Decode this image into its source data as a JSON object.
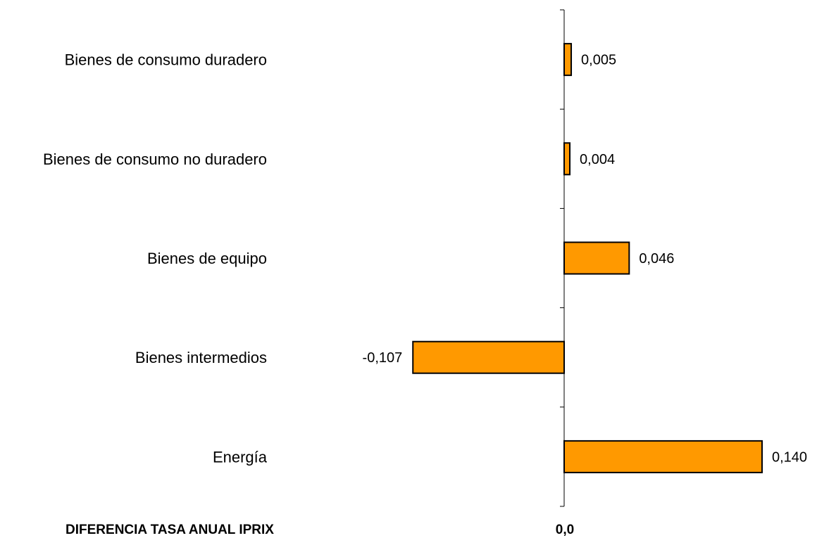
{
  "chart_data": {
    "type": "bar",
    "orientation": "horizontal",
    "categories": [
      "Bienes de consumo duradero",
      "Bienes de consumo no duradero",
      "Bienes de equipo",
      "Bienes intermedios",
      "Energía"
    ],
    "values": [
      0.005,
      0.004,
      0.046,
      -0.107,
      0.14
    ],
    "value_labels": [
      "0,005",
      "0,004",
      "0,046",
      "-0,107",
      "0,140"
    ],
    "title": "DIFERENCIA TASA ANUAL IPRIX",
    "axis_label": "0,0",
    "xlim": [
      -0.107,
      0.14
    ],
    "grid": false,
    "legend": "none",
    "colors": {
      "bar_fill": "#FF9900",
      "bar_stroke": "#000000",
      "axis": "#000000"
    }
  }
}
